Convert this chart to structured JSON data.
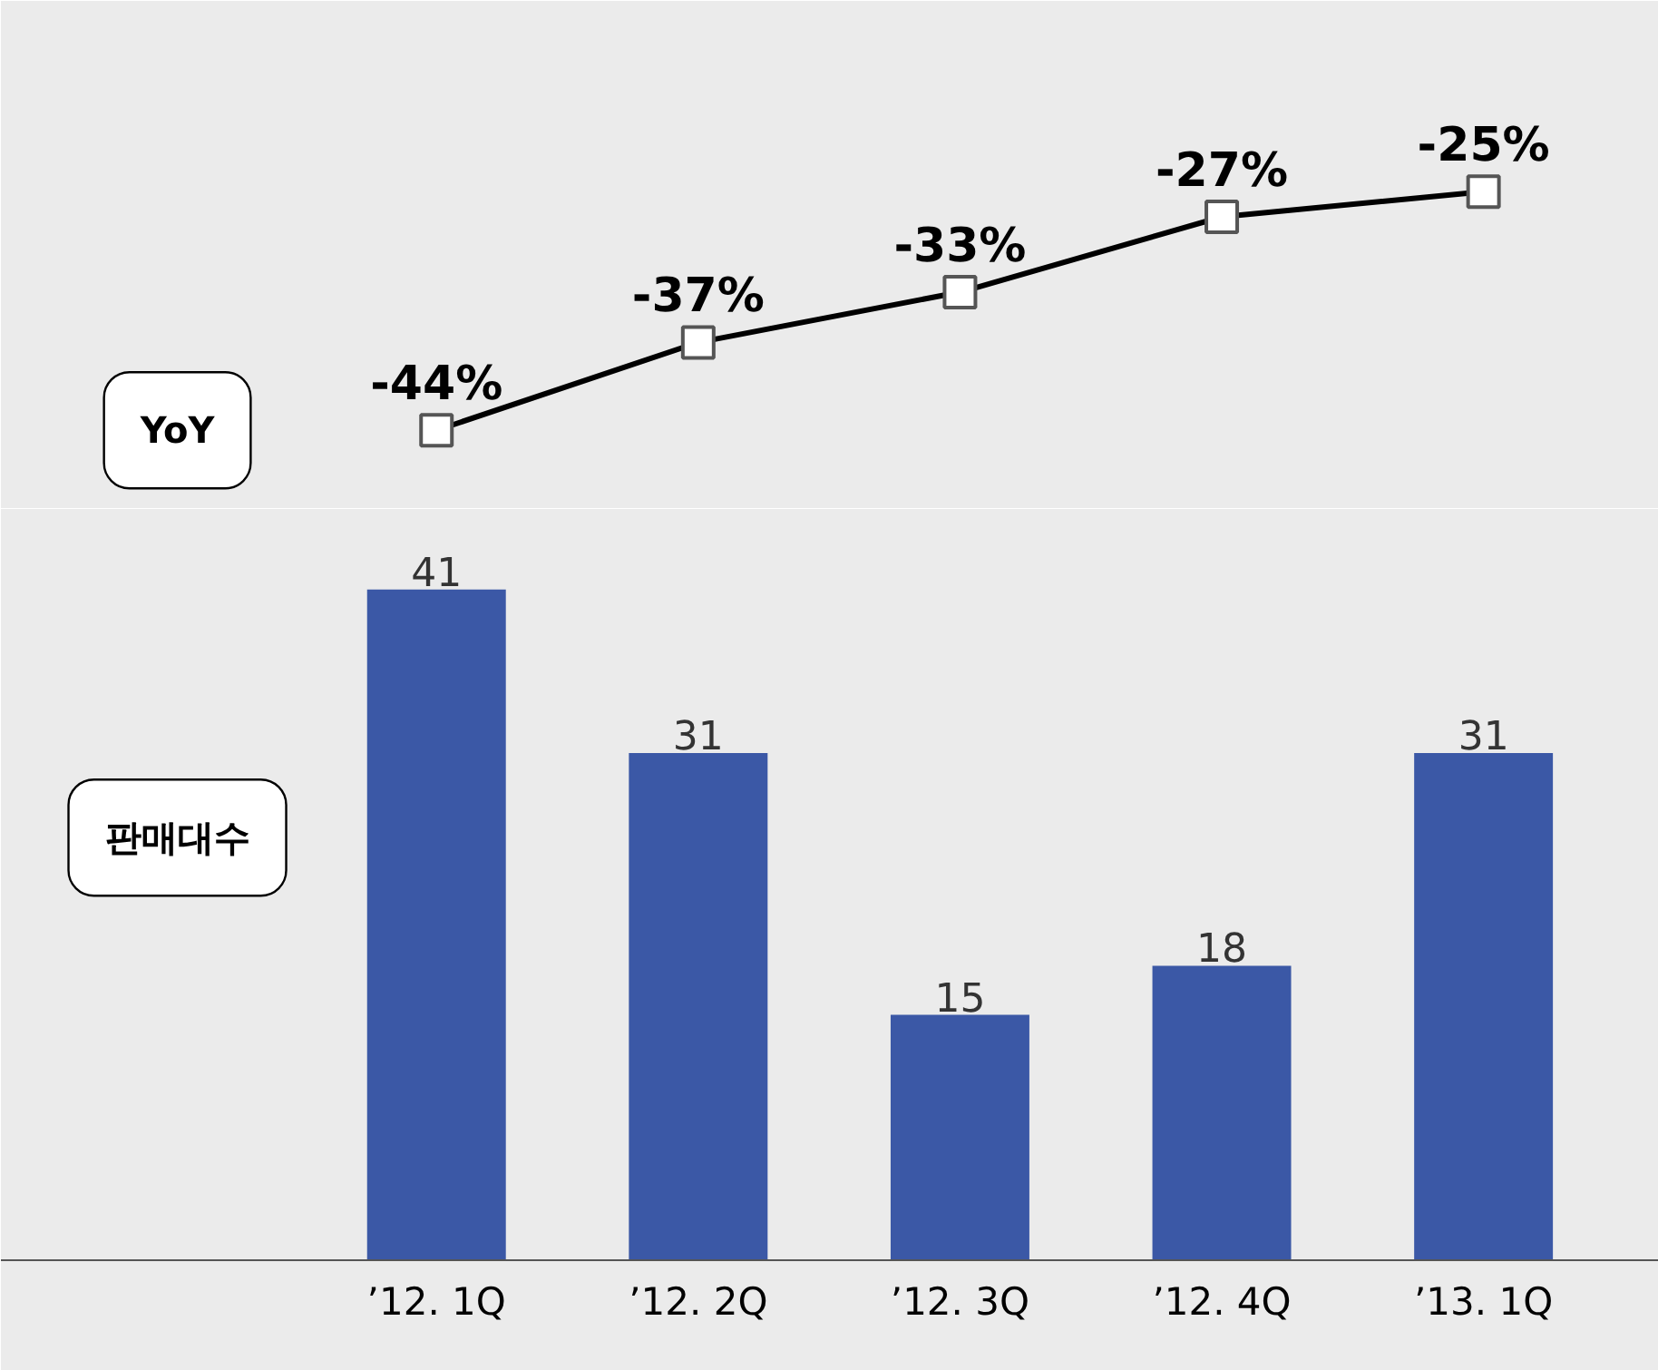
{
  "chart_data": [
    {
      "type": "line",
      "categories": [
        null,
        null,
        null,
        null,
        null
      ],
      "tick_labels": false,
      "marker": "square",
      "series": [
        {
          "name": "YoY",
          "color": "#000000",
          "values": [
            -44,
            -37,
            -33,
            -27,
            -25
          ],
          "value_labels": [
            "-44%",
            "-37%",
            "-33%",
            "-27%",
            "-25%"
          ]
        }
      ]
    },
    {
      "type": "bar",
      "categories": [
        "’12. 1Q",
        "’12. 2Q",
        "’12. 3Q",
        "’12. 4Q",
        "’13. 1Q"
      ],
      "tick_labels": "x",
      "data_labels": true,
      "series": [
        {
          "name": "판매대수",
          "color": "#3b58a6",
          "values": [
            41,
            31,
            15,
            18,
            31
          ]
        }
      ]
    }
  ]
}
